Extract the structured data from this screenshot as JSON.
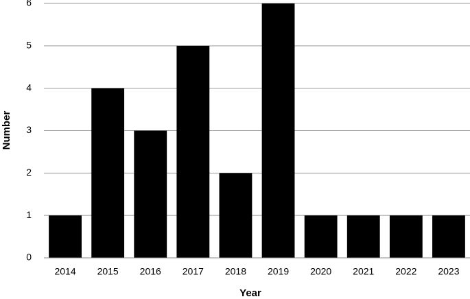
{
  "chart_data": {
    "type": "bar",
    "x_label": "Year",
    "y_label": "Number",
    "categories": [
      "2014",
      "2015",
      "2016",
      "2017",
      "2018",
      "2019",
      "2020",
      "2021",
      "2022",
      "2023"
    ],
    "values": [
      1,
      4,
      3,
      5,
      2,
      6,
      1,
      1,
      1,
      1
    ],
    "color": "#000000",
    "ylim": [
      0,
      6
    ],
    "yticks": [
      0,
      1,
      2,
      3,
      4,
      5,
      6
    ],
    "grid": true
  }
}
